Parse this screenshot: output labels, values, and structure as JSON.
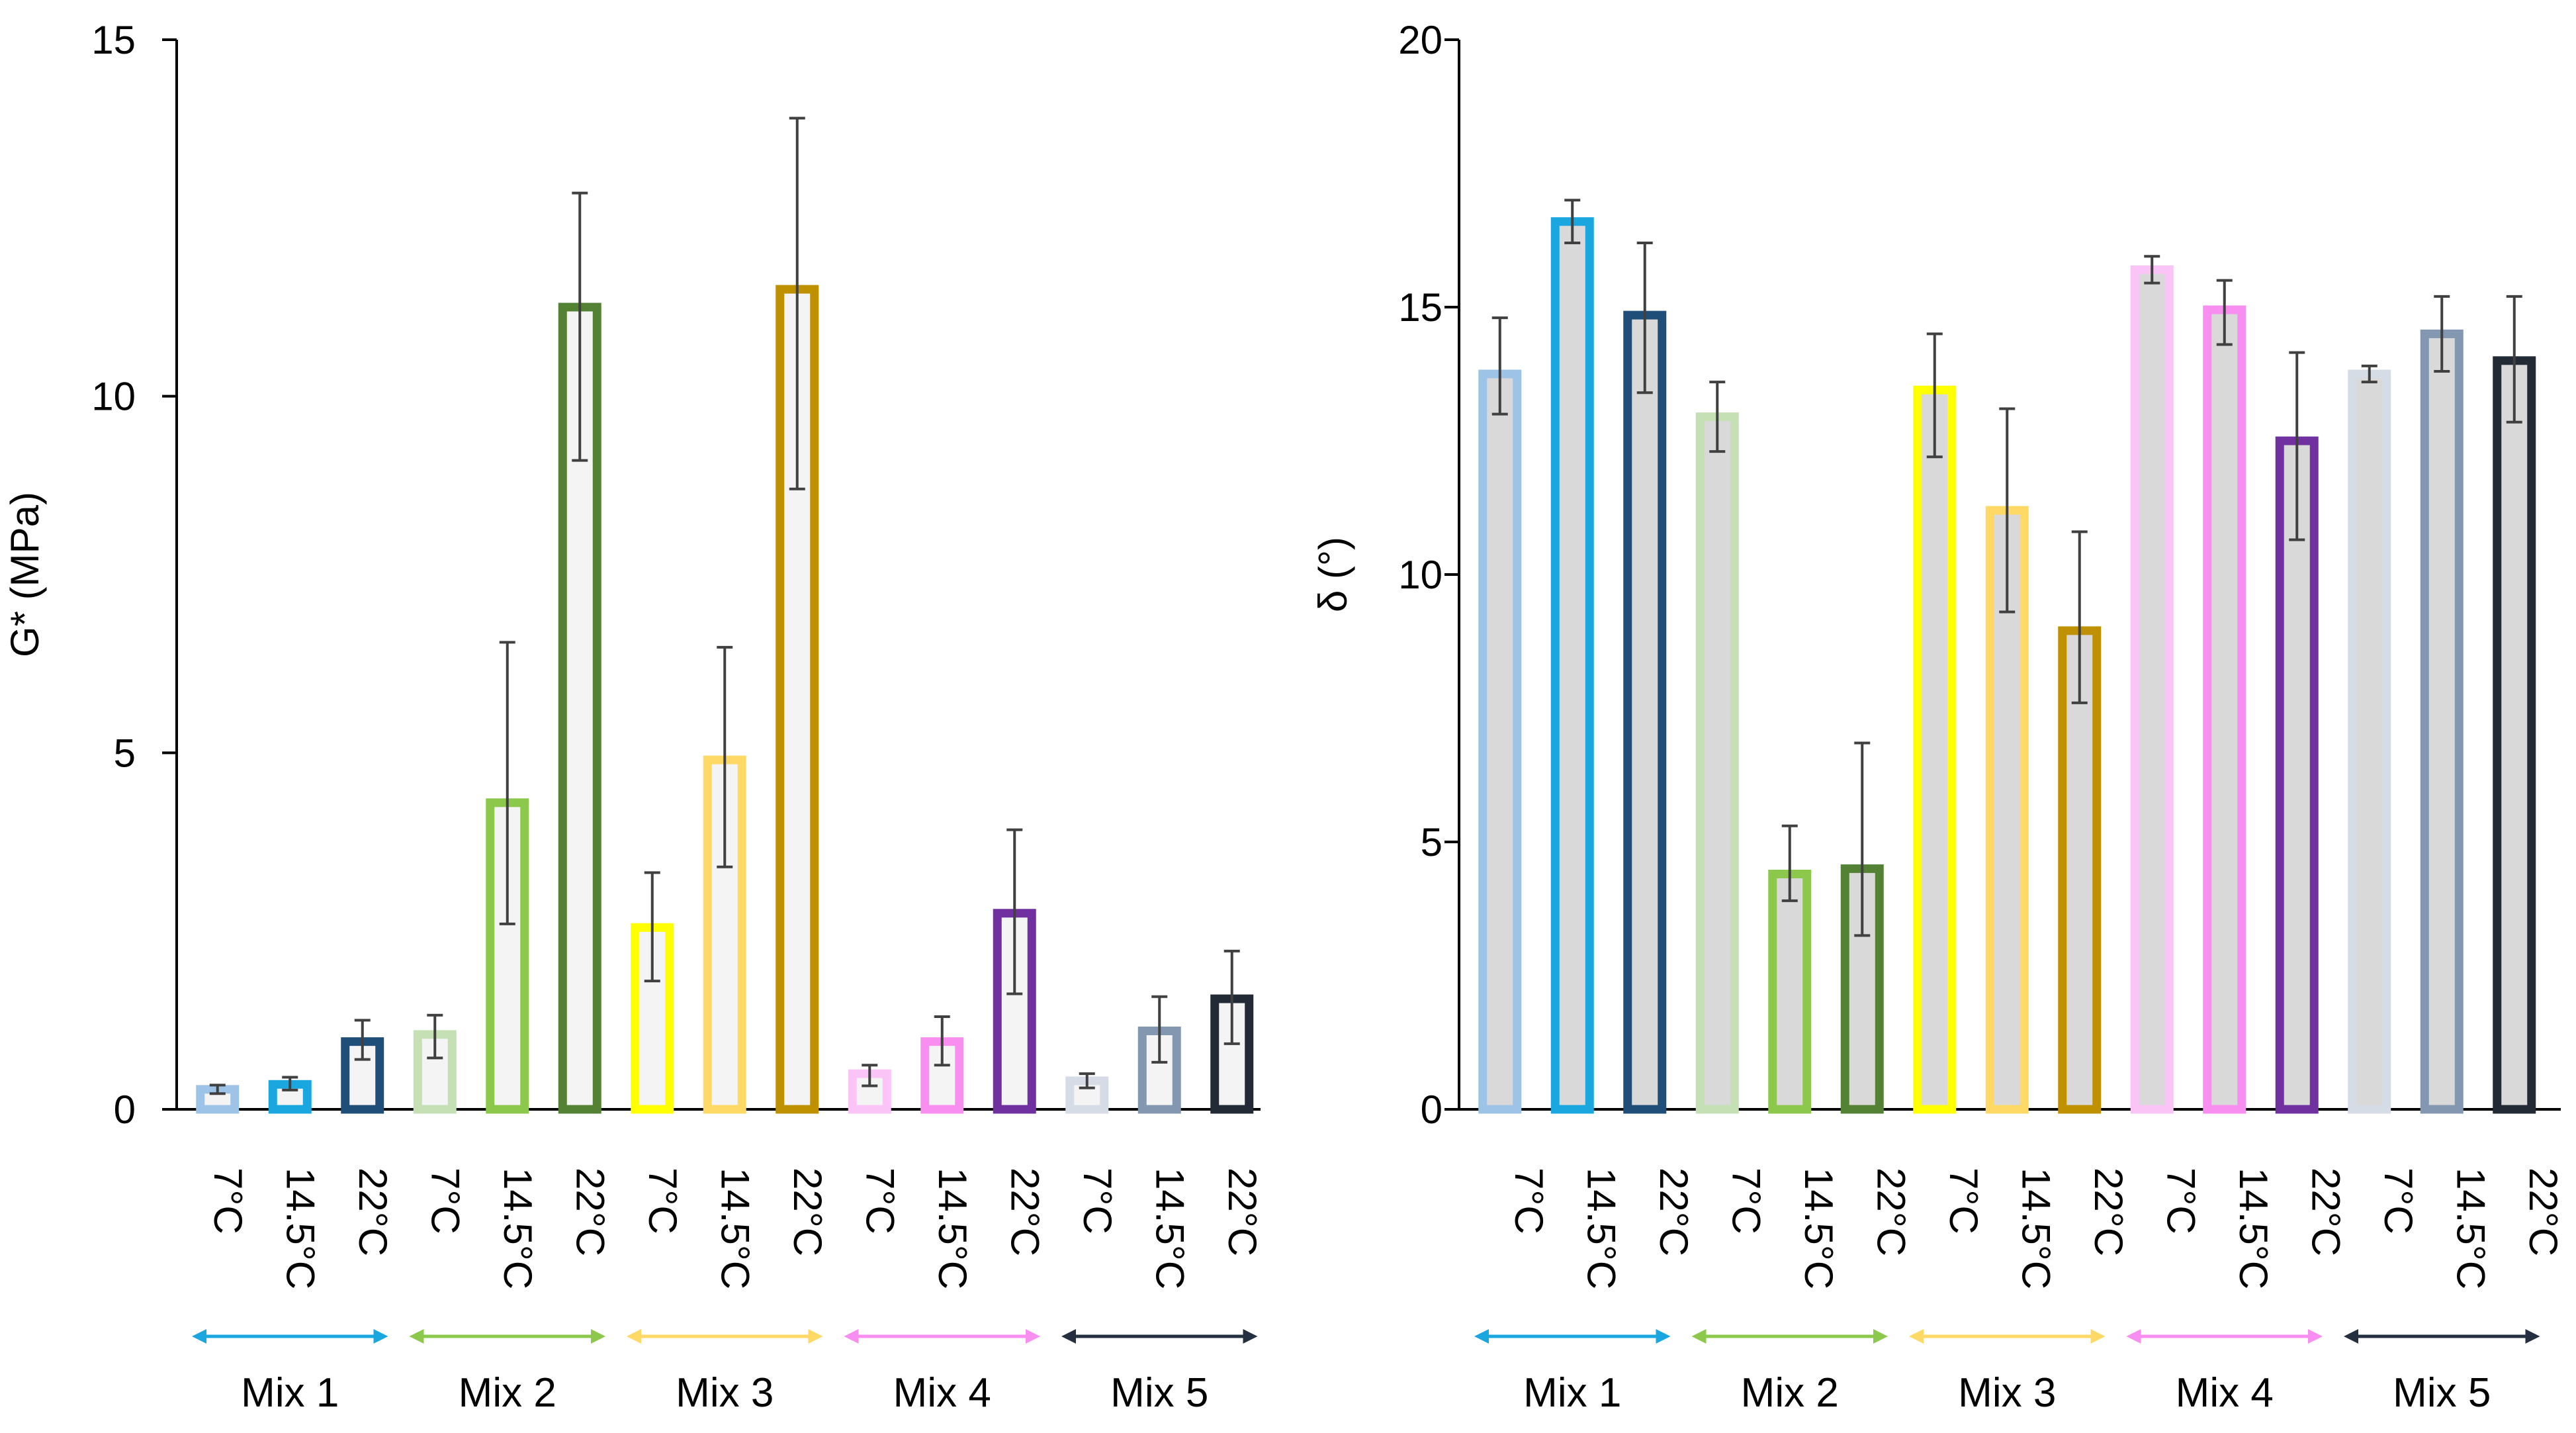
{
  "chart_data": [
    {
      "type": "bar",
      "ylabel": "G* (MPa)",
      "ylim": [
        0,
        15
      ],
      "yticks": [
        0,
        5,
        10,
        15
      ],
      "categories": [
        "7°C",
        "14.5°C",
        "22°C",
        "7°C",
        "14.5°C",
        "22°C",
        "7°C",
        "14.5°C",
        "22°C",
        "7°C",
        "14.5°C",
        "22°C",
        "7°C",
        "14.5°C",
        "22°C"
      ],
      "values": [
        0.28,
        0.35,
        0.95,
        1.05,
        4.3,
        11.25,
        2.55,
        4.9,
        11.5,
        0.5,
        0.95,
        2.75,
        0.4,
        1.1,
        1.55
      ],
      "error_low": [
        0.22,
        0.27,
        0.7,
        0.72,
        2.6,
        9.1,
        1.8,
        3.4,
        8.7,
        0.33,
        0.62,
        1.62,
        0.3,
        0.66,
        0.92
      ],
      "error_high": [
        0.34,
        0.45,
        1.25,
        1.32,
        6.55,
        12.85,
        3.32,
        6.48,
        13.9,
        0.62,
        1.3,
        3.92,
        0.5,
        1.58,
        2.22
      ],
      "fill_color": "#f4f4f4",
      "groups": [
        {
          "label": "Mix 1",
          "arrow_color": "#1aa7e0"
        },
        {
          "label": "Mix 2",
          "arrow_color": "#8cc84b"
        },
        {
          "label": "Mix 3",
          "arrow_color": "#ffd966"
        },
        {
          "label": "Mix 4",
          "arrow_color": "#f88ef0"
        },
        {
          "label": "Mix 5",
          "arrow_color": "#243040"
        }
      ]
    },
    {
      "type": "bar",
      "ylabel": "δ (°)",
      "ylim": [
        0,
        20
      ],
      "yticks": [
        0,
        5,
        10,
        15,
        20
      ],
      "categories": [
        "7°C",
        "14.5°C",
        "22°C",
        "7°C",
        "14.5°C",
        "22°C",
        "7°C",
        "14.5°C",
        "22°C",
        "7°C",
        "14.5°C",
        "22°C",
        "7°C",
        "14.5°C",
        "22°C"
      ],
      "values": [
        13.75,
        16.6,
        14.85,
        12.95,
        4.4,
        4.5,
        13.45,
        11.2,
        8.95,
        15.7,
        14.95,
        12.5,
        13.75,
        14.5,
        14.0
      ],
      "error_low": [
        13.0,
        16.2,
        13.4,
        12.3,
        3.9,
        3.25,
        12.2,
        9.3,
        7.6,
        15.45,
        14.3,
        10.65,
        13.6,
        13.8,
        12.85
      ],
      "error_high": [
        14.8,
        17.0,
        16.2,
        13.6,
        5.3,
        6.85,
        14.5,
        13.1,
        10.8,
        15.95,
        15.5,
        14.15,
        13.9,
        15.2,
        15.2
      ],
      "fill_color": "#d9d9d9",
      "groups": [
        {
          "label": "Mix 1",
          "arrow_color": "#1aa7e0"
        },
        {
          "label": "Mix 2",
          "arrow_color": "#8cc84b"
        },
        {
          "label": "Mix 3",
          "arrow_color": "#ffd966"
        },
        {
          "label": "Mix 4",
          "arrow_color": "#f88ef0"
        },
        {
          "label": "Mix 5",
          "arrow_color": "#243040"
        }
      ]
    }
  ],
  "bar_edge_colors": [
    "#9dc3e6",
    "#1aa7e0",
    "#1f4e79",
    "#c5e0b4",
    "#8cc84b",
    "#548235",
    "#ffff00",
    "#ffd966",
    "#bf9000",
    "#fbc4f7",
    "#f88ef0",
    "#7030a0",
    "#d6dce5",
    "#8497b0",
    "#222a35"
  ],
  "colors": {
    "axis": "#000000",
    "error_bar": "#404040"
  }
}
